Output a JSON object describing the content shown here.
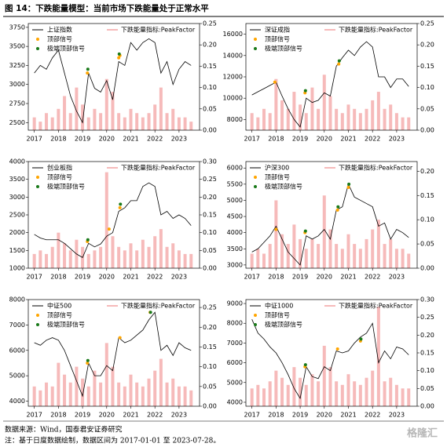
{
  "figure_title": "图 14：下跌能量模型：当前市场下跌能量处于正常水平",
  "source": "数据来源：Wind，国泰君安证券研究",
  "note": "注：基于日度数据绘制，数据区间为 2017-01-01 至 2023-07-28。",
  "watermark": "格隆汇",
  "chart_data": [
    {
      "type": "line",
      "legend": "upper left",
      "x": [
        2017,
        2017.25,
        2017.5,
        2017.75,
        2018,
        2018.25,
        2018.5,
        2018.75,
        2019,
        2019.25,
        2019.5,
        2019.75,
        2020,
        2020.25,
        2020.5,
        2020.75,
        2021,
        2021.25,
        2021.5,
        2021.75,
        2022,
        2022.25,
        2022.5,
        2022.75,
        2023,
        2023.25,
        2023.5
      ],
      "xlim": [
        2016.75,
        2023.85
      ],
      "xticks": [
        2017,
        2018,
        2019,
        2020,
        2021,
        2022,
        2023
      ],
      "ylim": [
        2400,
        3800
      ],
      "yticks": [
        2500,
        2750,
        3000,
        3250,
        3500,
        3750
      ],
      "y2lim": [
        0,
        0.25
      ],
      "y2ticks": [
        {
          "value": 0,
          "label": "0.00"
        },
        {
          "value": 0.05,
          "label": "0.05"
        },
        {
          "value": 0.1,
          "label": "0.10"
        },
        {
          "value": 0.15,
          "label": "0.15"
        },
        {
          "value": 0.2,
          "label": "0.20"
        },
        {
          "value": 0.25,
          "label": "0.25"
        }
      ],
      "series": [
        {
          "name": "上证指数",
          "type": "line",
          "color": "#000000",
          "values": [
            3150,
            3250,
            3200,
            3350,
            3450,
            3150,
            2850,
            2650,
            2500,
            3150,
            2950,
            2900,
            3050,
            2800,
            3300,
            3250,
            3550,
            3450,
            3550,
            3600,
            3550,
            3150,
            3300,
            3000,
            3200,
            3300,
            3250
          ]
        },
        {
          "name": "下跌能量指标:PeakFactor",
          "type": "bar",
          "axis": "y2",
          "color": "#f3a3a3",
          "values": [
            0.03,
            0.02,
            0.04,
            0.03,
            0.05,
            0.08,
            0.04,
            0.1,
            0.06,
            0.03,
            0.05,
            0.04,
            0.12,
            0.09,
            0.04,
            0.03,
            0.05,
            0.04,
            0.03,
            0.04,
            0.06,
            0.1,
            0.04,
            0.05,
            0.03,
            0.03,
            0.02
          ]
        },
        {
          "name": "顶部信号",
          "type": "scatter",
          "color": "#ffa500",
          "x": [
            2019.2,
            2020.5,
            2020.55
          ],
          "values": [
            3150,
            3350,
            3380
          ]
        },
        {
          "name": "极端顶部信号",
          "type": "scatter",
          "color": "#1a7a1a",
          "x": [
            2019.22,
            2020.52
          ],
          "values": [
            3200,
            3400
          ]
        }
      ]
    },
    {
      "type": "line",
      "legend": "upper left",
      "x": [
        2017,
        2017.25,
        2017.5,
        2017.75,
        2018,
        2018.25,
        2018.5,
        2018.75,
        2019,
        2019.25,
        2019.5,
        2019.75,
        2020,
        2020.25,
        2020.5,
        2020.75,
        2021,
        2021.25,
        2021.5,
        2021.75,
        2022,
        2022.25,
        2022.5,
        2022.75,
        2023,
        2023.25,
        2023.5
      ],
      "xlim": [
        2016.75,
        2023.85
      ],
      "xticks": [
        2017,
        2018,
        2019,
        2020,
        2021,
        2022,
        2023
      ],
      "ylim": [
        7000,
        17000
      ],
      "yticks": [
        8000,
        10000,
        12000,
        14000,
        16000
      ],
      "y2lim": [
        0,
        0.25
      ],
      "y2ticks": [
        {
          "value": 0,
          "label": "0.00"
        },
        {
          "value": 0.05,
          "label": "0.05"
        },
        {
          "value": 0.1,
          "label": "0.10"
        },
        {
          "value": 0.15,
          "label": "0.15"
        },
        {
          "value": 0.2,
          "label": "0.20"
        },
        {
          "value": 0.25,
          "label": "0.25"
        }
      ],
      "series": [
        {
          "name": "深证成指",
          "type": "line",
          "color": "#000000",
          "values": [
            10300,
            10600,
            10900,
            11200,
            11500,
            10200,
            9000,
            8000,
            7300,
            10000,
            9600,
            9800,
            10500,
            10200,
            13000,
            13800,
            14500,
            14000,
            14800,
            15300,
            14800,
            12000,
            12000,
            11000,
            11800,
            11800,
            11100
          ]
        },
        {
          "name": "下跌能量指标:PeakFactor",
          "type": "bar",
          "axis": "y2",
          "color": "#f3a3a3",
          "values": [
            0.04,
            0.03,
            0.05,
            0.04,
            0.12,
            0.07,
            0.05,
            0.09,
            0.06,
            0.04,
            0.1,
            0.05,
            0.13,
            0.08,
            0.05,
            0.04,
            0.06,
            0.05,
            0.04,
            0.05,
            0.07,
            0.09,
            0.05,
            0.06,
            0.04,
            0.03,
            0.03
          ]
        },
        {
          "name": "顶部信号",
          "type": "scatter",
          "color": "#ffa500",
          "x": [
            2017.95,
            2019.2,
            2020.6
          ],
          "values": [
            11500,
            10500,
            13200
          ]
        },
        {
          "name": "极端顶部信号",
          "type": "scatter",
          "color": "#1a7a1a",
          "x": [
            2019.22,
            2020.62
          ],
          "values": [
            10700,
            13500
          ]
        }
      ]
    },
    {
      "type": "line",
      "legend": "upper left",
      "x": [
        2017,
        2017.25,
        2017.5,
        2017.75,
        2018,
        2018.25,
        2018.5,
        2018.75,
        2019,
        2019.25,
        2019.5,
        2019.75,
        2020,
        2020.25,
        2020.5,
        2020.75,
        2021,
        2021.25,
        2021.5,
        2021.75,
        2022,
        2022.25,
        2022.5,
        2022.75,
        2023,
        2023.25,
        2023.5
      ],
      "xlim": [
        2016.75,
        2023.85
      ],
      "xticks": [
        2017,
        2018,
        2019,
        2020,
        2021,
        2022,
        2023
      ],
      "ylim": [
        1000,
        4000
      ],
      "yticks": [
        1000,
        1500,
        2000,
        2500,
        3000,
        3500,
        4000
      ],
      "y2lim": [
        0,
        0.3
      ],
      "y2ticks": [
        {
          "value": 0,
          "label": "0.00"
        },
        {
          "value": 0.05,
          "label": "0.05"
        },
        {
          "value": 0.1,
          "label": "0.10"
        },
        {
          "value": 0.15,
          "label": "0.15"
        },
        {
          "value": 0.2,
          "label": "0.20"
        },
        {
          "value": 0.25,
          "label": "0.25"
        },
        {
          "value": 0.3,
          "label": "0.30"
        }
      ],
      "series": [
        {
          "name": "创业板指",
          "type": "line",
          "color": "#000000",
          "values": [
            1950,
            1850,
            1800,
            1800,
            1800,
            1700,
            1550,
            1400,
            1300,
            1700,
            1600,
            1680,
            1900,
            2000,
            2600,
            2700,
            2900,
            2900,
            3300,
            3400,
            3300,
            2500,
            2600,
            2400,
            2500,
            2400,
            2200
          ]
        },
        {
          "name": "下跌能量指标:PeakFactor",
          "type": "bar",
          "axis": "y2",
          "color": "#f3a3a3",
          "values": [
            0.04,
            0.05,
            0.04,
            0.06,
            0.1,
            0.07,
            0.05,
            0.08,
            0.06,
            0.04,
            0.05,
            0.06,
            0.27,
            0.09,
            0.06,
            0.05,
            0.07,
            0.05,
            0.08,
            0.06,
            0.09,
            0.11,
            0.06,
            0.07,
            0.05,
            0.04,
            0.04
          ]
        },
        {
          "name": "顶部信号",
          "type": "scatter",
          "color": "#ffa500",
          "x": [
            2019.2,
            2020.1,
            2020.55
          ],
          "values": [
            1750,
            2100,
            2700
          ]
        },
        {
          "name": "极端顶部信号",
          "type": "scatter",
          "color": "#1a7a1a",
          "x": [
            2019.22,
            2020.57
          ],
          "values": [
            1800,
            2800
          ]
        }
      ]
    },
    {
      "type": "line",
      "legend": "upper left",
      "x": [
        2017,
        2017.25,
        2017.5,
        2017.75,
        2018,
        2018.25,
        2018.5,
        2018.75,
        2019,
        2019.25,
        2019.5,
        2019.75,
        2020,
        2020.25,
        2020.5,
        2020.75,
        2021,
        2021.25,
        2021.5,
        2021.75,
        2022,
        2022.25,
        2022.5,
        2022.75,
        2023,
        2023.25,
        2023.5
      ],
      "xlim": [
        2016.75,
        2023.85
      ],
      "xticks": [
        2017,
        2018,
        2019,
        2020,
        2021,
        2022,
        2023
      ],
      "ylim": [
        2900,
        6200
      ],
      "yticks": [
        3000,
        3500,
        4000,
        4500,
        5000,
        5500,
        6000
      ],
      "y2lim": [
        0,
        0.22
      ],
      "y2ticks": [
        {
          "value": 0,
          "label": "0.00"
        },
        {
          "value": 0.05,
          "label": "0.05"
        },
        {
          "value": 0.1,
          "label": "0.10"
        },
        {
          "value": 0.15,
          "label": "0.15"
        },
        {
          "value": 0.2,
          "label": "0.20"
        }
      ],
      "series": [
        {
          "name": "沪深300",
          "type": "line",
          "color": "#000000",
          "values": [
            3400,
            3500,
            3700,
            3900,
            4200,
            3800,
            3400,
            3200,
            3000,
            3900,
            3800,
            3900,
            4100,
            3800,
            4700,
            4800,
            5500,
            5100,
            5000,
            4900,
            4800,
            4200,
            4300,
            3800,
            4100,
            4000,
            3850
          ]
        },
        {
          "name": "下跌能量指标:PeakFactor",
          "type": "bar",
          "axis": "y2",
          "color": "#f3a3a3",
          "values": [
            0.03,
            0.04,
            0.03,
            0.05,
            0.14,
            0.07,
            0.05,
            0.09,
            0.06,
            0.04,
            0.06,
            0.05,
            0.15,
            0.08,
            0.05,
            0.04,
            0.07,
            0.05,
            0.04,
            0.06,
            0.08,
            0.1,
            0.05,
            0.06,
            0.04,
            0.04,
            0.03
          ]
        },
        {
          "name": "顶部信号",
          "type": "scatter",
          "color": "#ffa500",
          "x": [
            2018,
            2019.2,
            2020.55,
            2021
          ],
          "values": [
            4100,
            4000,
            4700,
            5400
          ]
        },
        {
          "name": "极端顶部信号",
          "type": "scatter",
          "color": "#1a7a1a",
          "x": [
            2019.22,
            2020.57,
            2021.02
          ],
          "values": [
            4050,
            4800,
            5500
          ]
        }
      ]
    },
    {
      "type": "line",
      "legend": "upper left",
      "x": [
        2017,
        2017.25,
        2017.5,
        2017.75,
        2018,
        2018.25,
        2018.5,
        2018.75,
        2019,
        2019.25,
        2019.5,
        2019.75,
        2020,
        2020.25,
        2020.5,
        2020.75,
        2021,
        2021.25,
        2021.5,
        2021.75,
        2022,
        2022.25,
        2022.5,
        2022.75,
        2023,
        2023.25,
        2023.5
      ],
      "xlim": [
        2016.75,
        2023.85
      ],
      "xticks": [
        2017,
        2018,
        2019,
        2020,
        2021,
        2022,
        2023
      ],
      "ylim": [
        3800,
        8000
      ],
      "yticks": [
        4000,
        5000,
        6000,
        7000,
        8000
      ],
      "y2lim": [
        0,
        0.27
      ],
      "y2ticks": [
        {
          "value": 0,
          "label": "0.00"
        },
        {
          "value": 0.05,
          "label": "0.05"
        },
        {
          "value": 0.1,
          "label": "0.10"
        },
        {
          "value": 0.15,
          "label": "0.15"
        },
        {
          "value": 0.2,
          "label": "0.20"
        },
        {
          "value": 0.25,
          "label": "0.25"
        }
      ],
      "series": [
        {
          "name": "中证500",
          "type": "line",
          "color": "#000000",
          "values": [
            6300,
            6200,
            6400,
            6500,
            6400,
            6000,
            5400,
            4800,
            4200,
            5500,
            5000,
            5000,
            5400,
            5200,
            6500,
            6300,
            6400,
            6600,
            6800,
            7200,
            7500,
            6000,
            6200,
            5800,
            6300,
            6100,
            6000
          ]
        },
        {
          "name": "下跌能量指标:PeakFactor",
          "type": "bar",
          "axis": "y2",
          "color": "#f3a3a3",
          "values": [
            0.05,
            0.04,
            0.06,
            0.05,
            0.11,
            0.08,
            0.06,
            0.1,
            0.07,
            0.05,
            0.09,
            0.06,
            0.16,
            0.1,
            0.06,
            0.05,
            0.08,
            0.06,
            0.05,
            0.07,
            0.09,
            0.12,
            0.06,
            0.07,
            0.05,
            0.05,
            0.04
          ]
        },
        {
          "name": "顶部信号",
          "type": "scatter",
          "color": "#ffa500",
          "x": [
            2019.2,
            2020.55,
            2021.8
          ],
          "values": [
            5500,
            6500,
            7500
          ]
        },
        {
          "name": "极端顶部信号",
          "type": "scatter",
          "color": "#1a7a1a",
          "x": [
            2019.22,
            2021.82
          ],
          "values": [
            5600,
            7500
          ]
        }
      ]
    },
    {
      "type": "line",
      "legend": "upper left",
      "x": [
        2017,
        2017.25,
        2017.5,
        2017.75,
        2018,
        2018.25,
        2018.5,
        2018.75,
        2019,
        2019.25,
        2019.5,
        2019.75,
        2020,
        2020.25,
        2020.5,
        2020.75,
        2021,
        2021.25,
        2021.5,
        2021.75,
        2022,
        2022.25,
        2022.5,
        2022.75,
        2023,
        2023.25,
        2023.5
      ],
      "xlim": [
        2016.75,
        2023.85
      ],
      "xticks": [
        2017,
        2018,
        2019,
        2020,
        2021,
        2022,
        2023
      ],
      "ylim": [
        3800,
        9200
      ],
      "yticks": [
        4000,
        5000,
        6000,
        7000,
        8000,
        9000
      ],
      "y2lim": [
        0,
        0.3
      ],
      "y2ticks": [
        {
          "value": 0,
          "label": "0.00"
        },
        {
          "value": 0.05,
          "label": "0.05"
        },
        {
          "value": 0.1,
          "label": "0.10"
        },
        {
          "value": 0.15,
          "label": "0.15"
        },
        {
          "value": 0.2,
          "label": "0.20"
        },
        {
          "value": 0.25,
          "label": "0.25"
        },
        {
          "value": 0.3,
          "label": "0.30"
        }
      ],
      "series": [
        {
          "name": "中证1000",
          "type": "line",
          "color": "#000000",
          "values": [
            8200,
            7500,
            7200,
            6800,
            6500,
            6000,
            5400,
            4700,
            4200,
            5800,
            5300,
            5200,
            5800,
            5600,
            6600,
            6500,
            6600,
            7000,
            7300,
            7500,
            8000,
            6000,
            6600,
            6200,
            6800,
            6700,
            6400
          ]
        },
        {
          "name": "下跌能量指标:PeakFactor",
          "type": "bar",
          "axis": "y2",
          "color": "#f3a3a3",
          "values": [
            0.05,
            0.06,
            0.05,
            0.07,
            0.1,
            0.08,
            0.06,
            0.11,
            0.08,
            0.06,
            0.09,
            0.07,
            0.17,
            0.11,
            0.07,
            0.06,
            0.09,
            0.07,
            0.06,
            0.08,
            0.1,
            0.28,
            0.07,
            0.08,
            0.06,
            0.05,
            0.05
          ]
        },
        {
          "name": "顶部信号",
          "type": "scatter",
          "color": "#ffa500",
          "x": [
            2019.2,
            2020.55,
            2021.5
          ],
          "values": [
            5800,
            6700,
            7100
          ]
        },
        {
          "name": "极端顶部信号",
          "type": "scatter",
          "color": "#1a7a1a",
          "x": [
            2019.22,
            2021.52
          ],
          "values": [
            5900,
            7200
          ]
        }
      ]
    }
  ]
}
